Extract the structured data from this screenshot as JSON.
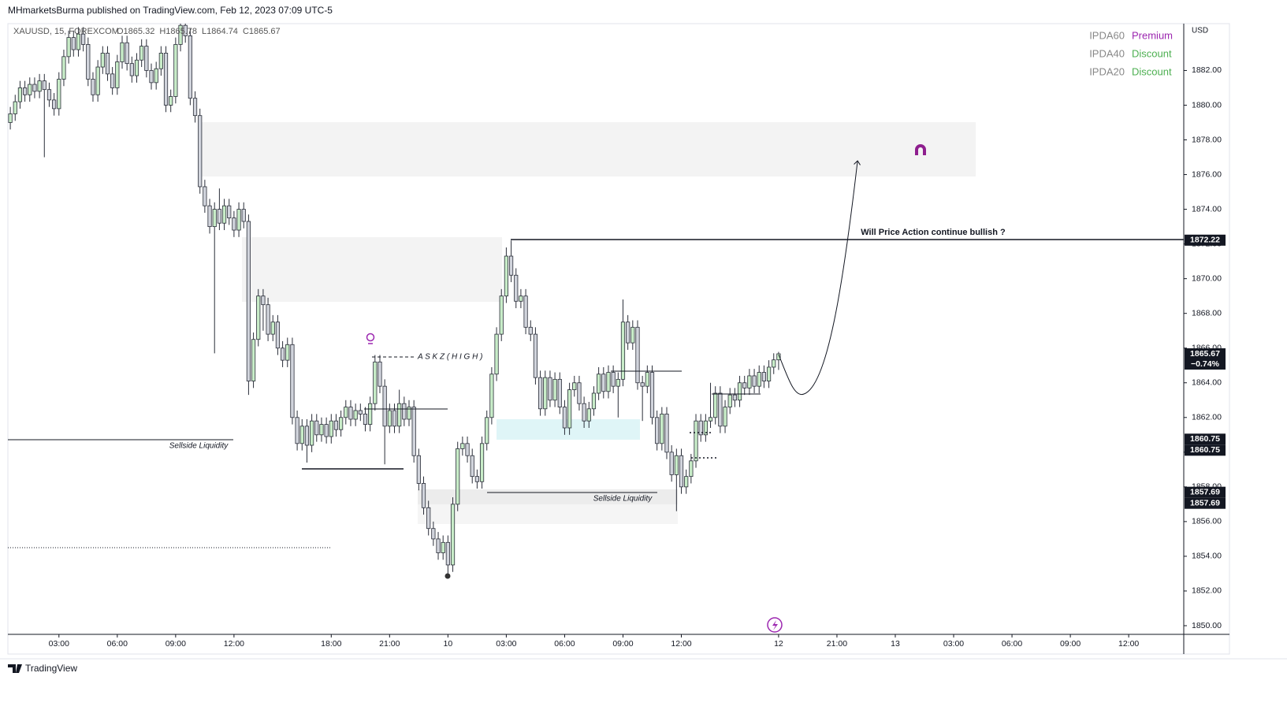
{
  "header": {
    "publisher": "MHmarketsBurma published on TradingView.com, Feb 12, 2023 07:09 UTC-5",
    "symbol": "XAUUSD, 15, FOREXCOM",
    "ohlc": [
      "O1865.32",
      "H1865.78",
      "L1864.74",
      "C1865.67"
    ]
  },
  "ipda": [
    {
      "name": "IPDA60",
      "state": "Premium",
      "color": "#9c27b0"
    },
    {
      "name": "IPDA40",
      "state": "Discount",
      "color": "#4caf50"
    },
    {
      "name": "IPDA20",
      "state": "Discount",
      "color": "#4caf50"
    }
  ],
  "annotations": {
    "question": "Will Price Action continue bullish ?",
    "sellside_left": "Sellside Liquidity",
    "sellside_mid": "Sellside Liquidity",
    "askz": "A S K Z ( H I G H )"
  },
  "footer": "TradingView",
  "chart_data": {
    "type": "candlestick",
    "currency": "USD",
    "up_color": "#c8ecc8",
    "down_color": "#d1d4dc",
    "outline_color": "#2a2e39",
    "xlim": [
      -0.5,
      241
    ],
    "ylim": [
      1849.5,
      1884.7
    ],
    "yticks": [
      {
        "value": 1850,
        "label": "1850.00"
      },
      {
        "value": 1852,
        "label": "1852.00"
      },
      {
        "value": 1854,
        "label": "1854.00"
      },
      {
        "value": 1856,
        "label": "1856.00"
      },
      {
        "value": 1858,
        "label": "1858.00"
      },
      {
        "value": 1860,
        "label": "1860.00"
      },
      {
        "value": 1862,
        "label": "1862.00"
      },
      {
        "value": 1864,
        "label": "1864.00"
      },
      {
        "value": 1866,
        "label": "1866.00"
      },
      {
        "value": 1868,
        "label": "1868.00"
      },
      {
        "value": 1870,
        "label": "1870.00"
      },
      {
        "value": 1872,
        "label": "1872.00"
      },
      {
        "value": 1874,
        "label": "1874.00"
      },
      {
        "value": 1876,
        "label": "1876.00"
      },
      {
        "value": 1878,
        "label": "1878.00"
      },
      {
        "value": 1880,
        "label": "1880.00"
      },
      {
        "value": 1882,
        "label": "1882.00"
      }
    ],
    "xticks": [
      {
        "value": 10,
        "label": "03:00"
      },
      {
        "value": 22,
        "label": "06:00"
      },
      {
        "value": 34,
        "label": "09:00"
      },
      {
        "value": 46,
        "label": "12:00"
      },
      {
        "value": 66,
        "label": "18:00"
      },
      {
        "value": 78,
        "label": "21:00"
      },
      {
        "value": 90,
        "label": "10"
      },
      {
        "value": 102,
        "label": "03:00"
      },
      {
        "value": 114,
        "label": "06:00"
      },
      {
        "value": 126,
        "label": "09:00"
      },
      {
        "value": 138,
        "label": "12:00"
      },
      {
        "value": 158,
        "label": "12"
      },
      {
        "value": 170,
        "label": "21:00"
      },
      {
        "value": 182,
        "label": "13"
      },
      {
        "value": 194,
        "label": "03:00"
      },
      {
        "value": 206,
        "label": "06:00"
      },
      {
        "value": 218,
        "label": "09:00"
      },
      {
        "value": 230,
        "label": "12:00"
      }
    ],
    "price_tags": [
      1872.22,
      1865.67,
      1860.75,
      1860.75,
      1857.69,
      1857.69
    ],
    "change_label": "−0.74%",
    "ohlc": [
      [
        1879.0,
        1879.9,
        1878.6,
        1879.5
      ],
      [
        1879.5,
        1880.6,
        1879.1,
        1880.2
      ],
      [
        1880.2,
        1881.4,
        1879.8,
        1881.0
      ],
      [
        1881.0,
        1881.4,
        1880.2,
        1880.6
      ],
      [
        1880.6,
        1881.6,
        1880.2,
        1881.2
      ],
      [
        1881.2,
        1881.6,
        1880.4,
        1880.8
      ],
      [
        1880.8,
        1881.8,
        1880.4,
        1881.4
      ],
      [
        1881.4,
        1881.8,
        1877.0,
        1880.9
      ],
      [
        1880.9,
        1881.3,
        1879.9,
        1880.3
      ],
      [
        1880.3,
        1880.7,
        1879.4,
        1879.8
      ],
      [
        1879.8,
        1881.9,
        1879.4,
        1881.5
      ],
      [
        1881.5,
        1883.2,
        1881.1,
        1882.8
      ],
      [
        1882.8,
        1884.3,
        1882.4,
        1883.9
      ],
      [
        1883.9,
        1884.3,
        1882.8,
        1883.2
      ],
      [
        1883.2,
        1884.5,
        1882.8,
        1884.1
      ],
      [
        1884.1,
        1884.5,
        1883.1,
        1883.5
      ],
      [
        1883.5,
        1883.9,
        1881.1,
        1881.5
      ],
      [
        1881.5,
        1881.9,
        1880.2,
        1880.6
      ],
      [
        1880.6,
        1882.6,
        1880.2,
        1882.2
      ],
      [
        1882.2,
        1883.4,
        1881.8,
        1883.0
      ],
      [
        1883.0,
        1883.4,
        1881.4,
        1881.8
      ],
      [
        1881.8,
        1882.2,
        1880.6,
        1881.0
      ],
      [
        1881.0,
        1882.9,
        1880.6,
        1882.5
      ],
      [
        1882.5,
        1884.0,
        1882.1,
        1883.6
      ],
      [
        1883.6,
        1884.0,
        1882.0,
        1882.4
      ],
      [
        1882.4,
        1882.8,
        1881.3,
        1881.7
      ],
      [
        1881.7,
        1883.0,
        1881.3,
        1882.6
      ],
      [
        1882.6,
        1883.8,
        1882.2,
        1883.4
      ],
      [
        1883.4,
        1883.8,
        1881.6,
        1882.0
      ],
      [
        1882.0,
        1882.4,
        1880.9,
        1881.3
      ],
      [
        1881.3,
        1882.5,
        1880.9,
        1882.1
      ],
      [
        1882.1,
        1883.4,
        1881.7,
        1883.0
      ],
      [
        1883.0,
        1883.4,
        1879.6,
        1880.0
      ],
      [
        1880.0,
        1880.9,
        1879.6,
        1880.5
      ],
      [
        1880.5,
        1883.9,
        1880.1,
        1883.5
      ],
      [
        1883.5,
        1885.0,
        1883.1,
        1884.6
      ],
      [
        1884.6,
        1885.0,
        1883.6,
        1884.0
      ],
      [
        1884.0,
        1884.4,
        1880.0,
        1880.4
      ],
      [
        1880.4,
        1880.8,
        1879.0,
        1879.4
      ],
      [
        1879.4,
        1879.8,
        1874.9,
        1875.3
      ],
      [
        1875.3,
        1875.7,
        1873.8,
        1874.2
      ],
      [
        1874.2,
        1874.6,
        1872.6,
        1873.0
      ],
      [
        1873.0,
        1874.4,
        1865.7,
        1874.0
      ],
      [
        1874.0,
        1875.2,
        1872.8,
        1873.2
      ],
      [
        1873.2,
        1874.6,
        1872.8,
        1874.2
      ],
      [
        1874.2,
        1874.6,
        1873.1,
        1873.5
      ],
      [
        1873.5,
        1873.9,
        1872.4,
        1872.8
      ],
      [
        1872.8,
        1874.4,
        1872.4,
        1874.0
      ],
      [
        1874.0,
        1874.4,
        1872.9,
        1873.3
      ],
      [
        1873.3,
        1873.7,
        1863.3,
        1864.1
      ],
      [
        1864.1,
        1866.9,
        1863.7,
        1866.5
      ],
      [
        1866.5,
        1869.4,
        1866.1,
        1869.0
      ],
      [
        1869.0,
        1869.4,
        1867.0,
        1868.5
      ],
      [
        1868.5,
        1868.9,
        1866.4,
        1866.8
      ],
      [
        1866.8,
        1867.9,
        1866.4,
        1867.5
      ],
      [
        1867.5,
        1867.9,
        1865.6,
        1866.0
      ],
      [
        1866.0,
        1866.4,
        1864.9,
        1865.3
      ],
      [
        1865.3,
        1866.6,
        1864.9,
        1866.2
      ],
      [
        1866.2,
        1866.6,
        1861.6,
        1862.0
      ],
      [
        1862.0,
        1862.4,
        1860.1,
        1860.5
      ],
      [
        1860.5,
        1861.9,
        1860.1,
        1861.5
      ],
      [
        1861.5,
        1861.9,
        1859.4,
        1860.4
      ],
      [
        1860.4,
        1862.2,
        1860.0,
        1861.8
      ],
      [
        1861.8,
        1862.2,
        1860.6,
        1861.0
      ],
      [
        1861.0,
        1862.0,
        1860.6,
        1861.6
      ],
      [
        1861.6,
        1862.0,
        1860.5,
        1860.9
      ],
      [
        1860.9,
        1862.2,
        1860.5,
        1861.8
      ],
      [
        1861.8,
        1862.2,
        1860.9,
        1861.3
      ],
      [
        1861.3,
        1862.4,
        1860.9,
        1862.0
      ],
      [
        1862.0,
        1863.0,
        1861.6,
        1862.6
      ],
      [
        1862.6,
        1863.0,
        1861.5,
        1861.9
      ],
      [
        1861.9,
        1862.8,
        1861.5,
        1862.4
      ],
      [
        1862.4,
        1862.8,
        1861.8,
        1862.2
      ],
      [
        1862.2,
        1862.6,
        1861.2,
        1861.6
      ],
      [
        1861.6,
        1863.2,
        1861.2,
        1862.8
      ],
      [
        1862.8,
        1865.6,
        1862.4,
        1865.2
      ],
      [
        1865.2,
        1865.6,
        1863.4,
        1863.8
      ],
      [
        1863.8,
        1864.2,
        1859.3,
        1861.5
      ],
      [
        1861.5,
        1862.8,
        1861.1,
        1862.4
      ],
      [
        1862.4,
        1862.8,
        1861.1,
        1861.5
      ],
      [
        1861.5,
        1863.6,
        1861.1,
        1862.8
      ],
      [
        1862.8,
        1863.2,
        1861.5,
        1861.9
      ],
      [
        1861.9,
        1863.0,
        1861.5,
        1862.6
      ],
      [
        1862.6,
        1863.0,
        1859.4,
        1859.8
      ],
      [
        1859.8,
        1860.2,
        1857.8,
        1858.2
      ],
      [
        1858.2,
        1858.6,
        1856.4,
        1856.8
      ],
      [
        1856.8,
        1857.2,
        1855.2,
        1855.6
      ],
      [
        1855.6,
        1856.0,
        1854.6,
        1855.0
      ],
      [
        1855.0,
        1855.4,
        1853.8,
        1854.2
      ],
      [
        1854.2,
        1855.2,
        1853.8,
        1854.8
      ],
      [
        1854.8,
        1855.2,
        1852.8,
        1853.5
      ],
      [
        1853.5,
        1857.4,
        1853.1,
        1857.0
      ],
      [
        1857.0,
        1860.6,
        1856.6,
        1860.2
      ],
      [
        1860.2,
        1860.9,
        1859.8,
        1860.5
      ],
      [
        1860.5,
        1860.9,
        1859.4,
        1859.8
      ],
      [
        1859.8,
        1860.2,
        1858.2,
        1858.6
      ],
      [
        1858.6,
        1859.0,
        1857.9,
        1858.3
      ],
      [
        1858.3,
        1860.9,
        1857.9,
        1860.5
      ],
      [
        1860.5,
        1862.4,
        1860.1,
        1862.0
      ],
      [
        1862.0,
        1864.9,
        1861.6,
        1864.5
      ],
      [
        1864.5,
        1867.2,
        1864.1,
        1866.8
      ],
      [
        1866.8,
        1869.4,
        1866.4,
        1869.0
      ],
      [
        1869.0,
        1871.8,
        1868.6,
        1871.3
      ],
      [
        1871.3,
        1872.2,
        1869.8,
        1870.2
      ],
      [
        1870.2,
        1870.6,
        1868.3,
        1868.7
      ],
      [
        1868.7,
        1869.4,
        1868.3,
        1869.0
      ],
      [
        1869.0,
        1869.4,
        1866.8,
        1867.2
      ],
      [
        1867.2,
        1867.6,
        1866.4,
        1866.8
      ],
      [
        1866.8,
        1867.2,
        1863.9,
        1864.3
      ],
      [
        1864.3,
        1864.7,
        1862.1,
        1862.5
      ],
      [
        1862.5,
        1864.7,
        1862.1,
        1864.3
      ],
      [
        1864.3,
        1864.7,
        1862.6,
        1863.0
      ],
      [
        1863.0,
        1864.6,
        1862.6,
        1864.2
      ],
      [
        1864.2,
        1864.6,
        1862.2,
        1862.6
      ],
      [
        1862.6,
        1863.0,
        1861.0,
        1861.4
      ],
      [
        1861.4,
        1864.0,
        1861.0,
        1863.6
      ],
      [
        1863.6,
        1864.4,
        1863.2,
        1864.0
      ],
      [
        1864.0,
        1864.4,
        1862.4,
        1862.8
      ],
      [
        1862.8,
        1863.2,
        1861.4,
        1861.8
      ],
      [
        1861.8,
        1862.9,
        1861.4,
        1862.5
      ],
      [
        1862.5,
        1863.8,
        1862.1,
        1863.4
      ],
      [
        1863.4,
        1864.9,
        1863.0,
        1864.5
      ],
      [
        1864.5,
        1864.9,
        1863.1,
        1863.5
      ],
      [
        1863.5,
        1865.0,
        1863.1,
        1864.6
      ],
      [
        1864.6,
        1865.0,
        1863.4,
        1863.8
      ],
      [
        1863.8,
        1864.6,
        1862.0,
        1864.2
      ],
      [
        1864.2,
        1868.8,
        1863.8,
        1867.5
      ],
      [
        1867.5,
        1867.9,
        1865.9,
        1866.3
      ],
      [
        1866.3,
        1867.6,
        1865.9,
        1867.2
      ],
      [
        1867.2,
        1867.6,
        1863.6,
        1864.0
      ],
      [
        1864.0,
        1864.4,
        1861.8,
        1863.8
      ],
      [
        1863.8,
        1865.0,
        1863.4,
        1864.6
      ],
      [
        1864.6,
        1865.0,
        1861.6,
        1862.0
      ],
      [
        1862.0,
        1862.4,
        1860.1,
        1860.5
      ],
      [
        1860.5,
        1862.6,
        1860.1,
        1862.2
      ],
      [
        1862.2,
        1862.6,
        1859.6,
        1860.0
      ],
      [
        1860.0,
        1860.4,
        1858.3,
        1858.7
      ],
      [
        1858.7,
        1860.2,
        1856.6,
        1859.8
      ],
      [
        1859.8,
        1860.2,
        1857.6,
        1858.0
      ],
      [
        1858.0,
        1859.0,
        1857.6,
        1858.6
      ],
      [
        1858.6,
        1859.9,
        1858.2,
        1859.5
      ],
      [
        1859.5,
        1862.2,
        1859.1,
        1861.8
      ],
      [
        1861.8,
        1862.2,
        1860.6,
        1861.0
      ],
      [
        1861.0,
        1862.2,
        1860.6,
        1861.8
      ],
      [
        1861.8,
        1864.0,
        1861.4,
        1862.0
      ],
      [
        1862.0,
        1863.8,
        1861.6,
        1863.4
      ],
      [
        1863.4,
        1863.8,
        1861.1,
        1861.5
      ],
      [
        1861.5,
        1863.0,
        1861.1,
        1862.6
      ],
      [
        1862.6,
        1863.7,
        1862.2,
        1863.3
      ],
      [
        1863.3,
        1863.7,
        1862.6,
        1863.0
      ],
      [
        1863.0,
        1864.4,
        1862.6,
        1864.0
      ],
      [
        1864.0,
        1864.4,
        1863.3,
        1863.7
      ],
      [
        1863.7,
        1864.8,
        1863.3,
        1864.4
      ],
      [
        1864.4,
        1864.8,
        1863.4,
        1863.8
      ],
      [
        1863.8,
        1865.0,
        1863.4,
        1864.6
      ],
      [
        1864.6,
        1865.0,
        1863.7,
        1864.1
      ],
      [
        1864.1,
        1865.3,
        1863.7,
        1864.9
      ],
      [
        1864.9,
        1865.7,
        1864.5,
        1865.32
      ],
      [
        1865.32,
        1865.78,
        1864.74,
        1865.67
      ]
    ]
  }
}
